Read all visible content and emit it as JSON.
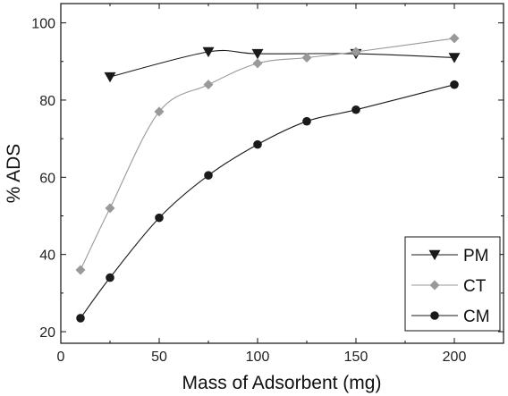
{
  "chart_data": {
    "type": "line",
    "xlabel": "Mass of Adsorbent (mg)",
    "ylabel": "% ADS",
    "xlim": [
      0,
      225
    ],
    "ylim": [
      17,
      105
    ],
    "xticks": [
      0,
      50,
      100,
      150,
      200
    ],
    "yticks": [
      20,
      40,
      60,
      80,
      100
    ],
    "grid": false,
    "legend_position": "bottom-right",
    "series": [
      {
        "name": "PM",
        "marker": "triangle-down",
        "color": "#1a1a1a",
        "x": [
          25,
          75,
          100,
          150,
          200
        ],
        "y": [
          86,
          92.5,
          92,
          92,
          91
        ]
      },
      {
        "name": "CT",
        "marker": "diamond",
        "color": "#999999",
        "x": [
          10,
          25,
          50,
          75,
          100,
          125,
          150,
          200
        ],
        "y": [
          36,
          52,
          77,
          84,
          89.5,
          91,
          92.5,
          96
        ]
      },
      {
        "name": "CM",
        "marker": "circle",
        "color": "#1a1a1a",
        "x": [
          10,
          25,
          50,
          75,
          100,
          125,
          150,
          200
        ],
        "y": [
          23.5,
          34,
          49.5,
          60.5,
          68.5,
          74.5,
          77.5,
          84
        ]
      }
    ]
  }
}
